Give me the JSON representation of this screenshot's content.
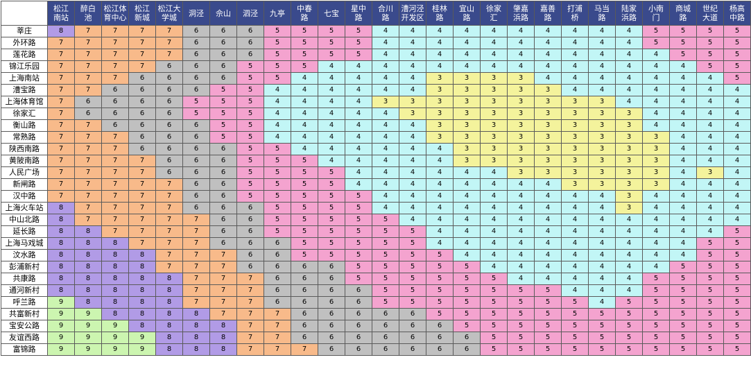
{
  "colors": {
    "9": "#ccf5b0",
    "8": "#b19be6",
    "7": "#f8ba8a",
    "6": "#c0c0c0",
    "5": "#f4a3cf",
    "4": "#c2f6f6",
    "3": "#f4f39c",
    "header_bg": "#3a4a8c",
    "header_text": "#ffffff"
  },
  "columns": [
    "松江南站",
    "醉白池",
    "松江体育中心",
    "松江新城",
    "松江大学城",
    "洞泾",
    "佘山",
    "泗泾",
    "九亭",
    "中春路",
    "七宝",
    "星中路",
    "合川路",
    "漕河泾开发区",
    "桂林路",
    "宜山路",
    "徐家汇",
    "肇嘉浜路",
    "嘉善路",
    "打浦桥",
    "马当路",
    "陆家浜路",
    "小南门",
    "商城路",
    "世纪大道",
    "杨高中路"
  ],
  "columns_display": [
    "松江\n南站",
    "醉白\n池",
    "松江体\n育中心",
    "松江\n新城",
    "松江大\n学城",
    "洞泾",
    "佘山",
    "泗泾",
    "九亭",
    "中春\n路",
    "七宝",
    "星中\n路",
    "合川\n路",
    "漕河泾\n开发区",
    "桂林\n路",
    "宜山\n路",
    "徐家\n汇",
    "肇嘉\n浜路",
    "嘉善\n路",
    "打浦\n桥",
    "马当\n路",
    "陆家\n浜路",
    "小南\n门",
    "商城\n路",
    "世纪\n大道",
    "杨高\n中路"
  ],
  "rows": [
    {
      "station": "莘庄",
      "fares": [
        8,
        7,
        7,
        7,
        7,
        6,
        6,
        6,
        5,
        5,
        5,
        5,
        4,
        4,
        4,
        4,
        4,
        4,
        4,
        4,
        4,
        4,
        5,
        5,
        5,
        5
      ]
    },
    {
      "station": "外环路",
      "fares": [
        7,
        7,
        7,
        7,
        7,
        6,
        6,
        6,
        5,
        5,
        5,
        5,
        4,
        4,
        4,
        4,
        4,
        4,
        4,
        4,
        4,
        4,
        5,
        5,
        5,
        5
      ]
    },
    {
      "station": "莲花路",
      "fares": [
        7,
        7,
        7,
        7,
        7,
        6,
        6,
        6,
        5,
        5,
        5,
        5,
        4,
        4,
        4,
        4,
        4,
        4,
        4,
        4,
        4,
        4,
        4,
        5,
        5,
        5
      ]
    },
    {
      "station": "锦江乐园",
      "fares": [
        7,
        7,
        7,
        7,
        6,
        6,
        6,
        5,
        5,
        5,
        4,
        4,
        4,
        4,
        4,
        4,
        4,
        4,
        4,
        4,
        4,
        4,
        4,
        4,
        5,
        5
      ]
    },
    {
      "station": "上海南站",
      "fares": [
        7,
        7,
        7,
        6,
        6,
        6,
        6,
        5,
        5,
        4,
        4,
        4,
        4,
        4,
        3,
        3,
        3,
        3,
        4,
        4,
        4,
        4,
        4,
        4,
        4,
        5
      ]
    },
    {
      "station": "漕宝路",
      "fares": [
        7,
        7,
        6,
        6,
        6,
        6,
        5,
        5,
        4,
        4,
        4,
        4,
        4,
        4,
        3,
        3,
        3,
        3,
        3,
        4,
        4,
        4,
        4,
        4,
        4,
        4
      ]
    },
    {
      "station": "上海体育馆",
      "fares": [
        7,
        6,
        6,
        6,
        6,
        5,
        5,
        5,
        4,
        4,
        4,
        4,
        3,
        3,
        3,
        3,
        3,
        3,
        3,
        3,
        3,
        4,
        4,
        4,
        4,
        4
      ]
    },
    {
      "station": "徐家汇",
      "fares": [
        7,
        6,
        6,
        6,
        6,
        5,
        5,
        5,
        4,
        4,
        4,
        4,
        4,
        3,
        3,
        3,
        3,
        3,
        3,
        3,
        3,
        3,
        4,
        4,
        4,
        4
      ]
    },
    {
      "station": "衡山路",
      "fares": [
        7,
        7,
        6,
        6,
        6,
        6,
        5,
        5,
        4,
        4,
        4,
        4,
        4,
        4,
        3,
        3,
        3,
        3,
        3,
        3,
        3,
        3,
        4,
        4,
        4,
        4
      ]
    },
    {
      "station": "常熟路",
      "fares": [
        7,
        7,
        7,
        6,
        6,
        6,
        5,
        5,
        4,
        4,
        4,
        4,
        4,
        4,
        3,
        3,
        3,
        3,
        3,
        3,
        3,
        3,
        3,
        4,
        4,
        4
      ]
    },
    {
      "station": "陕西南路",
      "fares": [
        7,
        7,
        7,
        6,
        6,
        6,
        6,
        5,
        5,
        4,
        4,
        4,
        4,
        4,
        4,
        3,
        3,
        3,
        3,
        3,
        3,
        3,
        3,
        4,
        4,
        4
      ]
    },
    {
      "station": "黄陂南路",
      "fares": [
        7,
        7,
        7,
        7,
        6,
        6,
        6,
        5,
        5,
        5,
        4,
        4,
        4,
        4,
        4,
        3,
        3,
        3,
        3,
        3,
        3,
        3,
        3,
        4,
        4,
        4
      ]
    },
    {
      "station": "人民广场",
      "fares": [
        7,
        7,
        7,
        7,
        6,
        6,
        6,
        5,
        5,
        5,
        5,
        4,
        4,
        4,
        4,
        4,
        4,
        3,
        3,
        3,
        3,
        3,
        3,
        4,
        3,
        4
      ]
    },
    {
      "station": "新闸路",
      "fares": [
        7,
        7,
        7,
        7,
        7,
        6,
        6,
        5,
        5,
        5,
        5,
        4,
        4,
        4,
        4,
        4,
        4,
        4,
        4,
        3,
        3,
        3,
        3,
        4,
        4,
        4
      ]
    },
    {
      "station": "汉中路",
      "fares": [
        7,
        7,
        7,
        7,
        7,
        6,
        6,
        5,
        5,
        5,
        5,
        5,
        4,
        4,
        4,
        4,
        4,
        4,
        4,
        4,
        4,
        3,
        4,
        4,
        4,
        4
      ]
    },
    {
      "station": "上海火车站",
      "fares": [
        8,
        7,
        7,
        7,
        7,
        6,
        6,
        6,
        5,
        5,
        5,
        5,
        4,
        4,
        4,
        4,
        4,
        4,
        4,
        4,
        4,
        3,
        4,
        4,
        4,
        4
      ]
    },
    {
      "station": "中山北路",
      "fares": [
        8,
        7,
        7,
        7,
        7,
        7,
        6,
        6,
        5,
        5,
        5,
        5,
        5,
        4,
        4,
        4,
        4,
        4,
        4,
        4,
        4,
        4,
        4,
        4,
        4,
        4
      ]
    },
    {
      "station": "延长路",
      "fares": [
        8,
        8,
        7,
        7,
        7,
        7,
        6,
        6,
        5,
        5,
        5,
        5,
        5,
        5,
        4,
        4,
        4,
        4,
        4,
        4,
        4,
        4,
        4,
        4,
        4,
        5
      ]
    },
    {
      "station": "上海马戏城",
      "fares": [
        8,
        8,
        8,
        7,
        7,
        7,
        6,
        6,
        6,
        5,
        5,
        5,
        5,
        5,
        4,
        4,
        4,
        4,
        4,
        4,
        4,
        4,
        4,
        4,
        5,
        5
      ]
    },
    {
      "station": "汶水路",
      "fares": [
        8,
        8,
        8,
        8,
        7,
        7,
        7,
        6,
        6,
        5,
        5,
        5,
        5,
        5,
        5,
        4,
        4,
        4,
        4,
        4,
        4,
        4,
        4,
        4,
        5,
        5
      ]
    },
    {
      "station": "彭浦新村",
      "fares": [
        8,
        8,
        8,
        8,
        7,
        7,
        7,
        6,
        6,
        6,
        6,
        5,
        5,
        5,
        5,
        5,
        4,
        4,
        4,
        4,
        4,
        4,
        4,
        5,
        5,
        5
      ]
    },
    {
      "station": "共康路",
      "fares": [
        8,
        8,
        8,
        8,
        8,
        7,
        7,
        7,
        6,
        6,
        6,
        5,
        5,
        5,
        5,
        5,
        5,
        4,
        4,
        4,
        4,
        4,
        5,
        5,
        5,
        5
      ]
    },
    {
      "station": "通河新村",
      "fares": [
        8,
        8,
        8,
        8,
        8,
        7,
        7,
        7,
        6,
        6,
        6,
        6,
        5,
        5,
        5,
        5,
        5,
        5,
        5,
        4,
        4,
        4,
        5,
        5,
        5,
        5
      ]
    },
    {
      "station": "呼兰路",
      "fares": [
        9,
        8,
        8,
        8,
        8,
        7,
        7,
        7,
        6,
        6,
        6,
        6,
        5,
        5,
        5,
        5,
        5,
        5,
        5,
        5,
        4,
        5,
        5,
        5,
        5,
        5
      ]
    },
    {
      "station": "共富新村",
      "fares": [
        9,
        9,
        8,
        8,
        8,
        8,
        7,
        7,
        7,
        6,
        6,
        6,
        6,
        6,
        5,
        5,
        5,
        5,
        5,
        5,
        5,
        5,
        5,
        5,
        5,
        5
      ]
    },
    {
      "station": "宝安公路",
      "fares": [
        9,
        9,
        9,
        8,
        8,
        8,
        8,
        7,
        7,
        6,
        6,
        6,
        6,
        6,
        6,
        5,
        5,
        5,
        5,
        5,
        5,
        5,
        5,
        5,
        5,
        5
      ]
    },
    {
      "station": "友谊西路",
      "fares": [
        9,
        9,
        9,
        9,
        8,
        8,
        8,
        7,
        7,
        6,
        6,
        6,
        6,
        6,
        6,
        6,
        5,
        5,
        5,
        5,
        5,
        5,
        5,
        5,
        5,
        5
      ]
    },
    {
      "station": "富锦路",
      "fares": [
        9,
        9,
        9,
        9,
        8,
        8,
        8,
        7,
        7,
        7,
        6,
        6,
        6,
        6,
        6,
        6,
        5,
        5,
        5,
        5,
        5,
        5,
        5,
        5,
        5,
        5
      ]
    }
  ]
}
